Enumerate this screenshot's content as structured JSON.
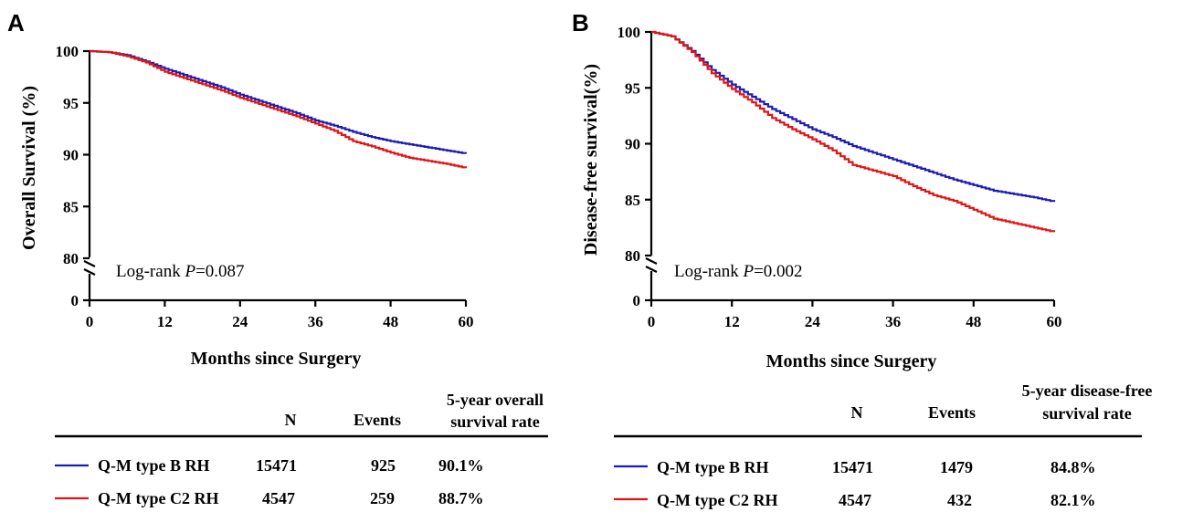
{
  "colors": {
    "blue": "#1c1cb4",
    "red": "#e01414",
    "axis": "#000000"
  },
  "panels": [
    {
      "letter": "A",
      "chart_data": {
        "type": "line",
        "title": "",
        "xlabel": "Months since Surgery",
        "ylabel": "Overall Survival (%)",
        "xlim": [
          0,
          60
        ],
        "ylim": [
          80,
          100
        ],
        "y_axis_break": {
          "below": 80,
          "bottom_value": 0
        },
        "x_ticks": [
          0,
          12,
          24,
          36,
          48,
          60
        ],
        "y_ticks": [
          100,
          95,
          90,
          85,
          80,
          0
        ],
        "grid": false,
        "annotation": {
          "prefix": "Log-rank ",
          "italic": "P",
          "suffix": "=0.087"
        },
        "series": [
          {
            "name": "Q-M type B RH",
            "color": "#1c1cb4",
            "x": [
              0,
              3,
              6,
              9,
              12,
              15,
              18,
              21,
              24,
              27,
              30,
              33,
              36,
              39,
              42,
              45,
              48,
              51,
              54,
              57,
              60
            ],
            "y": [
              100,
              99.9,
              99.6,
              99.0,
              98.3,
              97.7,
              97.1,
              96.5,
              95.8,
              95.2,
              94.6,
              94.0,
              93.3,
              92.8,
              92.2,
              91.7,
              91.3,
              91.0,
              90.7,
              90.4,
              90.1
            ]
          },
          {
            "name": "Q-M type C2 RH",
            "color": "#e01414",
            "x": [
              0,
              3,
              6,
              9,
              12,
              15,
              18,
              21,
              24,
              27,
              30,
              33,
              36,
              39,
              42,
              45,
              48,
              51,
              54,
              57,
              60
            ],
            "y": [
              100,
              99.9,
              99.5,
              98.9,
              98.0,
              97.4,
              96.8,
              96.2,
              95.5,
              94.9,
              94.3,
              93.7,
              93.0,
              92.3,
              91.3,
              90.8,
              90.2,
              89.7,
              89.4,
              89.1,
              88.7
            ]
          }
        ]
      },
      "table": {
        "headers": [
          "N",
          "Events",
          "5-year overall",
          "survival rate"
        ],
        "rows": [
          {
            "label": "Q-M type B RH",
            "n": "15471",
            "events": "925",
            "rate": "90.1%",
            "color": "#1c1cb4"
          },
          {
            "label": "Q-M type C2 RH",
            "n": "4547",
            "events": "259",
            "rate": "88.7%",
            "color": "#e01414"
          }
        ]
      }
    },
    {
      "letter": "B",
      "chart_data": {
        "type": "line",
        "title": "",
        "xlabel": "Months since Surgery",
        "ylabel": "Disease-free survival(%)",
        "xlim": [
          0,
          60
        ],
        "ylim": [
          80,
          100
        ],
        "y_axis_break": {
          "below": 80,
          "bottom_value": 0
        },
        "x_ticks": [
          0,
          12,
          24,
          36,
          48,
          60
        ],
        "y_ticks": [
          100,
          95,
          90,
          85,
          80,
          0
        ],
        "grid": false,
        "annotation": {
          "prefix": "Log-rank ",
          "italic": "P",
          "suffix": "=0.002"
        },
        "series": [
          {
            "name": "Q-M type B RH",
            "color": "#1c1cb4",
            "x": [
              0,
              3,
              6,
              9,
              12,
              15,
              18,
              21,
              24,
              27,
              30,
              33,
              36,
              39,
              42,
              45,
              48,
              51,
              54,
              57,
              60
            ],
            "y": [
              100,
              99.6,
              98.3,
              96.6,
              95.3,
              94.2,
              93.1,
              92.2,
              91.3,
              90.6,
              89.8,
              89.2,
              88.6,
              88.0,
              87.4,
              86.8,
              86.3,
              85.8,
              85.5,
              85.2,
              84.8
            ]
          },
          {
            "name": "Q-M type C2 RH",
            "color": "#e01414",
            "x": [
              0,
              3,
              6,
              9,
              12,
              15,
              18,
              21,
              24,
              27,
              30,
              33,
              36,
              39,
              42,
              45,
              48,
              51,
              54,
              57,
              60
            ],
            "y": [
              100,
              99.6,
              98.2,
              96.3,
              94.9,
              93.7,
              92.3,
              91.3,
              90.4,
              89.4,
              88.1,
              87.6,
              87.1,
              86.2,
              85.4,
              84.9,
              84.1,
              83.3,
              82.9,
              82.5,
              82.1
            ]
          }
        ]
      },
      "table": {
        "headers": [
          "N",
          "Events",
          "5-year disease-free",
          "survival rate"
        ],
        "rows": [
          {
            "label": "Q-M type B RH",
            "n": "15471",
            "events": "1479",
            "rate": "84.8%",
            "color": "#1c1cb4"
          },
          {
            "label": "Q-M type C2 RH",
            "n": "4547",
            "events": "432",
            "rate": "82.1%",
            "color": "#e01414"
          }
        ]
      }
    }
  ]
}
